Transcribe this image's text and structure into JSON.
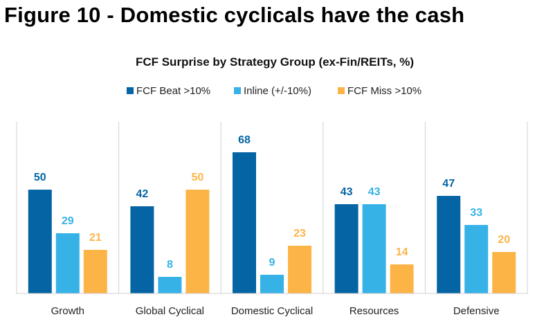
{
  "figure_title": "Figure 10 - Domestic cyclicals have the cash",
  "colors": {
    "beat": "#0464A4",
    "inline": "#36B2E6",
    "miss": "#FDB447"
  },
  "chart_data": {
    "type": "bar",
    "title": "FCF Surprise by Strategy Group (ex-Fin/REITs, %)",
    "categories": [
      "Growth",
      "Global Cyclical",
      "Domestic Cyclical",
      "Resources",
      "Defensive"
    ],
    "series": [
      {
        "name": "FCF Beat >10%",
        "values": [
          50,
          42,
          68,
          43,
          47
        ]
      },
      {
        "name": "Inline (+/-10%)",
        "values": [
          29,
          8,
          9,
          43,
          33
        ]
      },
      {
        "name": "FCF Miss >10%",
        "values": [
          21,
          50,
          23,
          14,
          20
        ]
      }
    ],
    "ylim": [
      0,
      75
    ],
    "legend_position": "top",
    "grid": false,
    "category_separators": true
  }
}
